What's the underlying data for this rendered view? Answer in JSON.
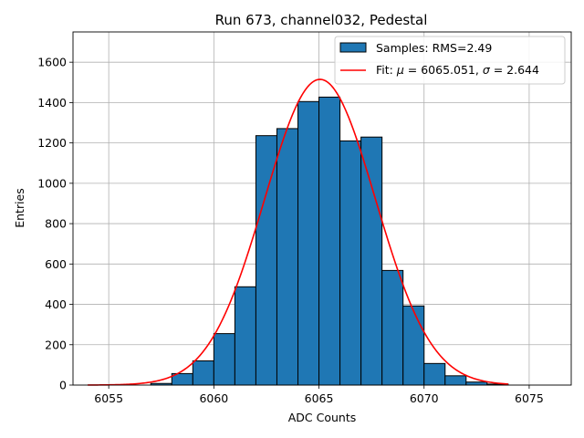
{
  "chart_data": {
    "type": "bar",
    "title": "Run 673, channel032, Pedestal",
    "xlabel": "ADC Counts",
    "ylabel": "Entries",
    "xlim": [
      6053.3,
      6077.0
    ],
    "ylim": [
      0,
      1750
    ],
    "grid": true,
    "legend_position": "top-right",
    "x_ticks": [
      6055,
      6060,
      6065,
      6070,
      6075
    ],
    "y_ticks": [
      0,
      200,
      400,
      600,
      800,
      1000,
      1200,
      1400,
      1600
    ],
    "bin_width": 1,
    "bins": [
      {
        "left": 6057,
        "count": 8
      },
      {
        "left": 6058,
        "count": 57
      },
      {
        "left": 6059,
        "count": 120
      },
      {
        "left": 6060,
        "count": 255
      },
      {
        "left": 6061,
        "count": 487
      },
      {
        "left": 6062,
        "count": 1236
      },
      {
        "left": 6063,
        "count": 1271
      },
      {
        "left": 6064,
        "count": 1405
      },
      {
        "left": 6065,
        "count": 1427
      },
      {
        "left": 6066,
        "count": 1210
      },
      {
        "left": 6067,
        "count": 1229
      },
      {
        "left": 6068,
        "count": 568
      },
      {
        "left": 6069,
        "count": 392
      },
      {
        "left": 6070,
        "count": 107
      },
      {
        "left": 6071,
        "count": 46
      },
      {
        "left": 6072,
        "count": 15
      },
      {
        "left": 6073,
        "count": 5
      }
    ],
    "fit": {
      "mu": 6065.051,
      "sigma": 2.644,
      "amplitude": 1515,
      "x_range": [
        6054,
        6074
      ]
    },
    "series": [
      {
        "name": "Samples: RMS=2.49",
        "color": "#1f77b4",
        "kind": "histogram"
      },
      {
        "name": "Fit: μ = 6065.051, σ = 2.644",
        "color": "#ff0000",
        "kind": "line"
      }
    ]
  },
  "legend": {
    "samples_label": "Samples: RMS=2.49",
    "fit_prefix": "Fit: ",
    "mu_symbol": "μ",
    "mu_text": " = 6065.051, ",
    "sigma_symbol": "σ",
    "sigma_text": " = 2.644"
  }
}
